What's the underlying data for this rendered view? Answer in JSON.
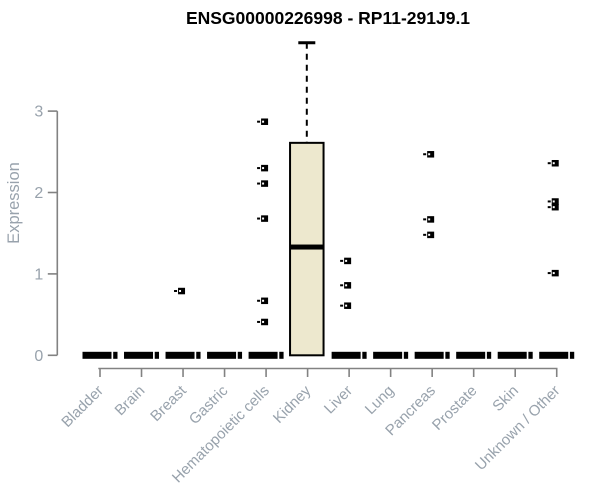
{
  "title": "ENSG00000226998 - RP11-291J9.1",
  "y_axis": {
    "label": "Expression",
    "tick_labels": [
      "0",
      "1",
      "2",
      "3"
    ]
  },
  "x_axis": {
    "categories": [
      "Bladder",
      "Brain",
      "Breast",
      "Gastric",
      "Hematopoietic cells",
      "Kidney",
      "Liver",
      "Lung",
      "Pancreas",
      "Prostate",
      "Skin",
      "Unknown / Other"
    ]
  },
  "colors": {
    "box_fill": "#EDE8CE",
    "box_border": "#000000",
    "median": "#000000",
    "point": "#000000",
    "axis_line": "#828282",
    "axis_text": "#98A2AC",
    "title_text": "#000000",
    "background": "#FFFFFF"
  },
  "chart_data": {
    "type": "boxplot",
    "title": "ENSG00000226998 - RP11-291J9.1",
    "xlabel": "",
    "ylabel": "Expression",
    "ylim": [
      0,
      3.9
    ],
    "yticks": [
      0,
      1,
      2,
      3
    ],
    "grid": false,
    "legend": false,
    "categories": [
      "Bladder",
      "Brain",
      "Breast",
      "Gastric",
      "Hematopoietic cells",
      "Kidney",
      "Liver",
      "Lung",
      "Pancreas",
      "Prostate",
      "Skin",
      "Unknown / Other"
    ],
    "boxes": [
      {
        "category": "Bladder",
        "q1": 0,
        "median": 0,
        "q3": 0,
        "whisker_low": 0,
        "whisker_high": 0,
        "points": []
      },
      {
        "category": "Brain",
        "q1": 0,
        "median": 0,
        "q3": 0,
        "whisker_low": 0,
        "whisker_high": 0,
        "points": []
      },
      {
        "category": "Breast",
        "q1": 0,
        "median": 0,
        "q3": 0,
        "whisker_low": 0,
        "whisker_high": 0,
        "points": [
          0.79
        ]
      },
      {
        "category": "Gastric",
        "q1": 0,
        "median": 0,
        "q3": 0,
        "whisker_low": 0,
        "whisker_high": 0,
        "points": []
      },
      {
        "category": "Hematopoietic cells",
        "q1": 0,
        "median": 0,
        "q3": 0,
        "whisker_low": 0,
        "whisker_high": 0,
        "points": [
          2.87,
          2.3,
          2.11,
          1.68,
          0.67,
          0.41
        ]
      },
      {
        "category": "Kidney",
        "q1": 0,
        "median": 1.33,
        "q3": 2.61,
        "whisker_low": 0,
        "whisker_high": 3.84,
        "points": []
      },
      {
        "category": "Liver",
        "q1": 0,
        "median": 0,
        "q3": 0,
        "whisker_low": 0,
        "whisker_high": 0,
        "points": [
          1.16,
          0.86,
          0.61
        ]
      },
      {
        "category": "Lung",
        "q1": 0,
        "median": 0,
        "q3": 0,
        "whisker_low": 0,
        "whisker_high": 0,
        "points": []
      },
      {
        "category": "Pancreas",
        "q1": 0,
        "median": 0,
        "q3": 0,
        "whisker_low": 0,
        "whisker_high": 0,
        "points": [
          2.47,
          1.67,
          1.48
        ]
      },
      {
        "category": "Prostate",
        "q1": 0,
        "median": 0,
        "q3": 0,
        "whisker_low": 0,
        "whisker_high": 0,
        "points": []
      },
      {
        "category": "Skin",
        "q1": 0,
        "median": 0,
        "q3": 0,
        "whisker_low": 0,
        "whisker_high": 0,
        "points": []
      },
      {
        "category": "Unknown / Other",
        "q1": 0,
        "median": 0,
        "q3": 0,
        "whisker_low": 0,
        "whisker_high": 0,
        "points": [
          2.36,
          1.89,
          1.82,
          1.01
        ]
      }
    ]
  }
}
